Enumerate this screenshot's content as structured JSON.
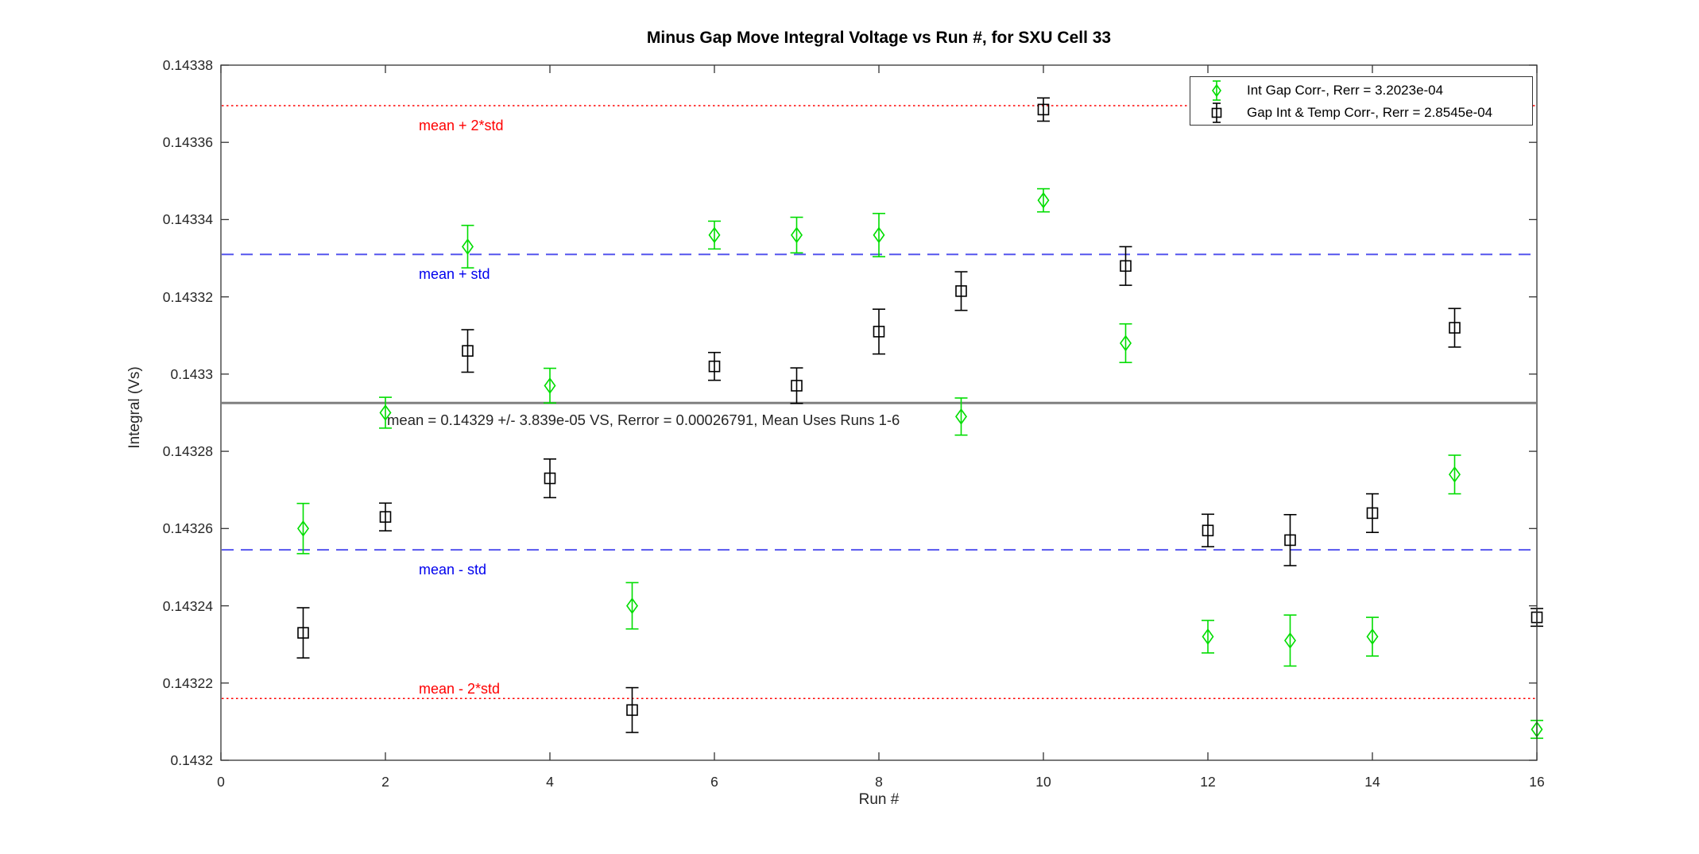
{
  "figure": {
    "title": "Minus Gap Move Integral Voltage vs Run #, for SXU Cell 33",
    "xlabel": "Run #",
    "ylabel": "Integral (Vs)"
  },
  "chart_data": {
    "type": "scatter",
    "title": "Minus Gap Move Integral Voltage vs Run #, for SXU Cell 33",
    "xlabel": "Run #",
    "ylabel": "Integral (Vs)",
    "xlim": [
      0,
      16
    ],
    "ylim": [
      0.1432,
      0.14338
    ],
    "xticks": [
      0,
      2,
      4,
      6,
      8,
      10,
      12,
      14,
      16
    ],
    "yticks": [
      0.1432,
      0.14322,
      0.14324,
      0.14326,
      0.14328,
      0.1433,
      0.14332,
      0.14334,
      0.14336,
      0.14338
    ],
    "ytick_labels": [
      "0.1432",
      "0.14322",
      "0.14324",
      "0.14326",
      "0.14328",
      "0.1433",
      "0.14332",
      "0.14334",
      "0.14336",
      "0.14338"
    ],
    "grid": false,
    "legend_position": "top-right",
    "x": [
      1,
      2,
      3,
      4,
      5,
      6,
      7,
      8,
      9,
      10,
      11,
      12,
      13,
      14,
      15,
      16
    ],
    "series": [
      {
        "name": "Int Gap Corr-, Rerr = 3.2023e-04",
        "marker": "diamond",
        "color": "#00dd00",
        "values": [
          0.14326,
          0.14329,
          0.143333,
          0.143297,
          0.14324,
          0.143336,
          0.143336,
          0.143336,
          0.143289,
          0.143345,
          0.143308,
          0.143232,
          0.143231,
          0.143232,
          0.143274,
          0.143208
        ],
        "yerr": [
          6.5e-06,
          4e-06,
          5.5e-06,
          4.5e-06,
          6e-06,
          3.6e-06,
          4.6e-06,
          5.6e-06,
          4.8e-06,
          3e-06,
          5e-06,
          4.2e-06,
          6.6e-06,
          5e-06,
          5e-06,
          2.3e-06
        ]
      },
      {
        "name": "Gap Int & Temp Corr-, Rerr = 2.8545e-04",
        "marker": "square",
        "color": "#000000",
        "values": [
          0.143233,
          0.143263,
          0.143306,
          0.143273,
          0.143213,
          0.143302,
          0.143297,
          0.143311,
          0.1433215,
          0.1433685,
          0.143328,
          0.1432595,
          0.143257,
          0.143264,
          0.143312,
          0.143237
        ],
        "yerr": [
          6.5e-06,
          3.6e-06,
          5.5e-06,
          5e-06,
          5.8e-06,
          3.6e-06,
          4.6e-06,
          5.8e-06,
          5e-06,
          3e-06,
          5e-06,
          4.2e-06,
          6.6e-06,
          5e-06,
          5e-06,
          2.3e-06
        ]
      }
    ],
    "reference_lines": [
      {
        "label": "mean + 2*std",
        "value": 0.1433695,
        "style": "dotted",
        "color": "#ff0000",
        "label_color": "#ff0000",
        "label_position": "below"
      },
      {
        "label": "mean + std",
        "value": 0.143331,
        "style": "dashed",
        "color": "#5555ee",
        "label_color": "#0000ee",
        "label_position": "below"
      },
      {
        "label": "",
        "value": 0.1432925,
        "style": "solid",
        "color": "#808080",
        "label_color": "#262626",
        "label_position": "below",
        "annotation": "mean = 0.14329 +/- 3.839e-05 VS, Rerror = 0.00026791, Mean Uses Runs 1-6"
      },
      {
        "label": "mean - std",
        "value": 0.1432545,
        "style": "dashed",
        "color": "#5555ee",
        "label_color": "#0000ee",
        "label_position": "below"
      },
      {
        "label": "mean - 2*std",
        "value": 0.143216,
        "style": "dotted",
        "color": "#ff0000",
        "label_color": "#ff0000",
        "label_position": "above"
      }
    ]
  }
}
